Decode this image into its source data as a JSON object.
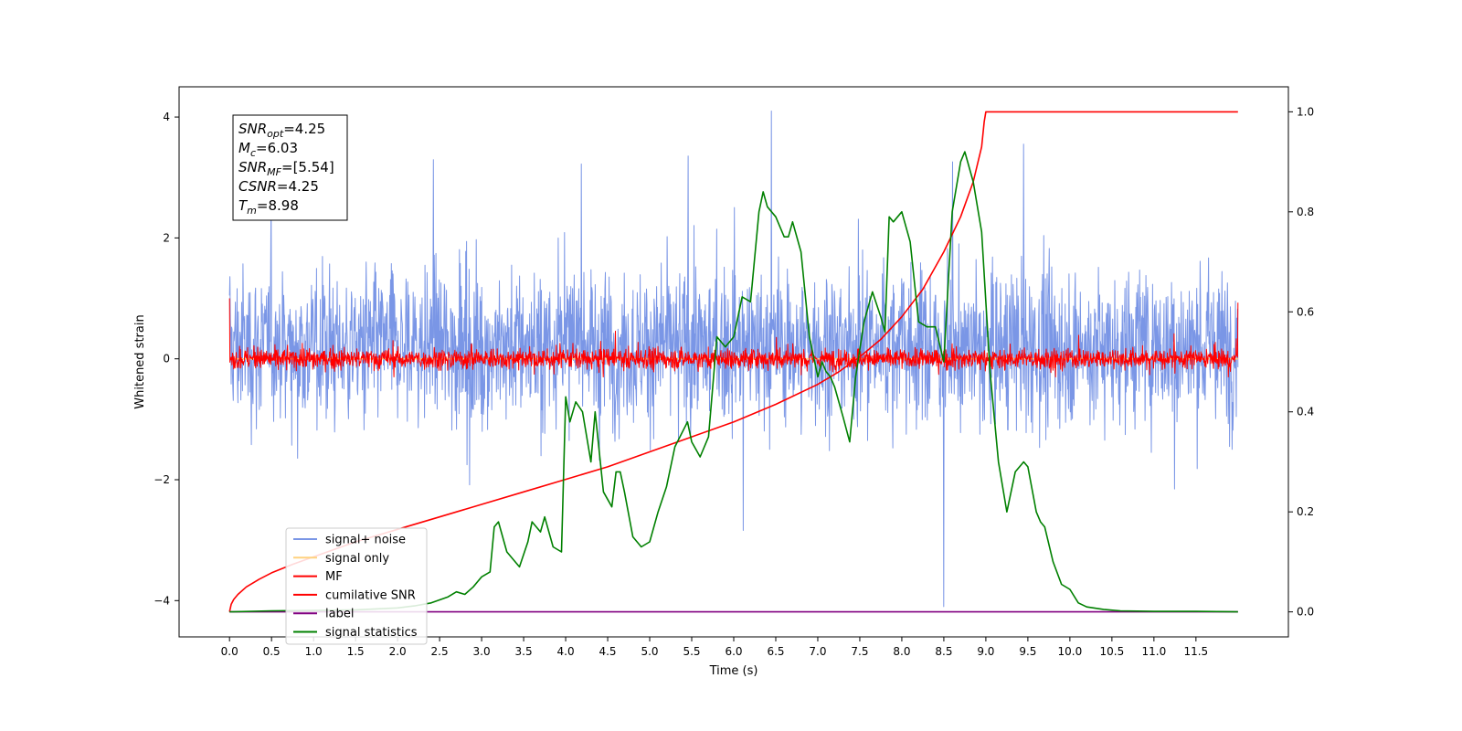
{
  "chart_data": {
    "type": "line",
    "xlabel": "Time (s)",
    "ylabel": "Whitened strain",
    "xlim": [
      -0.6,
      12.6
    ],
    "ylim": [
      -4.6,
      4.5
    ],
    "y2lim": [
      -0.05,
      1.05
    ],
    "xticks": [
      0.0,
      0.5,
      1.0,
      1.5,
      2.0,
      2.5,
      3.0,
      3.5,
      4.0,
      4.5,
      5.0,
      5.5,
      6.0,
      6.5,
      7.0,
      7.5,
      8.0,
      8.5,
      9.0,
      9.5,
      10.0,
      10.5,
      11.0,
      11.5
    ],
    "xtick_labels": [
      "0.0",
      "0.5",
      "1.0",
      "1.5",
      "2.0",
      "2.5",
      "3.0",
      "3.5",
      "4.0",
      "4.5",
      "5.0",
      "5.5",
      "6.0",
      "6.5",
      "7.0",
      "7.5",
      "8.0",
      "8.5",
      "9.0",
      "9.5",
      "10.0",
      "10.5",
      "11.0",
      "11.5"
    ],
    "yticks": [
      -4,
      -2,
      0,
      2,
      4
    ],
    "ytick_labels": [
      "−4",
      "−2",
      "0",
      "2",
      "4"
    ],
    "y2ticks": [
      0.0,
      0.2,
      0.4,
      0.6,
      0.8,
      1.0
    ],
    "y2tick_labels": [
      "0.0",
      "0.2",
      "0.4",
      "0.6",
      "0.8",
      "1.0"
    ],
    "grid": false,
    "legend_position": "lower-left",
    "annotation": {
      "lines": [
        {
          "base": "SNR",
          "sub": "opt",
          "value": "=4.25"
        },
        {
          "base": "M",
          "sub": "c",
          "value": "=6.03"
        },
        {
          "base": "SNR",
          "sub": "MF",
          "value": "=[5.54]"
        },
        {
          "base": "CSNR",
          "sub": "",
          "value": "=4.25"
        },
        {
          "base": "T",
          "sub": "m",
          "value": "=8.98"
        }
      ]
    },
    "series": [
      {
        "name": "signal+ noise",
        "color": "#7a96e6",
        "axis": "left",
        "kind": "noise",
        "x_range": [
          0.0,
          12.0
        ],
        "center": 0.2,
        "amplitude": 0.9,
        "envelope_high": 3.6,
        "envelope_low": -3.3,
        "peak_points": [
          {
            "x": 6.45,
            "y": 4.1
          },
          {
            "x": 8.5,
            "y": -4.1
          },
          {
            "x": 9.45,
            "y": 3.55
          }
        ]
      },
      {
        "name": "signal only",
        "color": "#ffd27f",
        "axis": "left",
        "kind": "line",
        "x": [
          0.0,
          12.0
        ],
        "y": [
          0.0,
          0.0
        ]
      },
      {
        "name": "MF",
        "color": "#ff0000",
        "axis": "left",
        "kind": "noise",
        "x_range": [
          0.0,
          12.0
        ],
        "center": 0.0,
        "amplitude": 0.12,
        "envelope_high": 0.7,
        "envelope_low": -0.3,
        "end_points": [
          {
            "x": 0.0,
            "y": 1.0
          },
          {
            "x": 12.0,
            "y": 0.93
          }
        ]
      },
      {
        "name": "cumilative SNR",
        "color": "#ff0000",
        "axis": "right",
        "x": [
          0.0,
          0.02,
          0.05,
          0.1,
          0.2,
          0.35,
          0.5,
          0.75,
          1.0,
          1.5,
          2.0,
          2.5,
          3.0,
          3.5,
          4.0,
          4.5,
          5.0,
          5.5,
          6.0,
          6.5,
          7.0,
          7.25,
          7.5,
          7.75,
          8.0,
          8.25,
          8.5,
          8.7,
          8.85,
          8.95,
          8.98,
          9.0,
          12.0
        ],
        "y": [
          0.0,
          0.015,
          0.025,
          0.035,
          0.05,
          0.065,
          0.078,
          0.095,
          0.11,
          0.14,
          0.165,
          0.19,
          0.215,
          0.24,
          0.265,
          0.29,
          0.32,
          0.35,
          0.38,
          0.415,
          0.455,
          0.48,
          0.51,
          0.545,
          0.59,
          0.645,
          0.72,
          0.79,
          0.86,
          0.93,
          0.98,
          1.0,
          1.0
        ]
      },
      {
        "name": "label",
        "color": "#800080",
        "axis": "right",
        "x": [
          0.0,
          12.0
        ],
        "y": [
          0.0,
          0.0
        ]
      },
      {
        "name": "signal statistics",
        "color": "#008000",
        "axis": "right",
        "x": [
          0.0,
          0.5,
          1.0,
          1.5,
          2.0,
          2.2,
          2.4,
          2.6,
          2.7,
          2.8,
          2.9,
          3.0,
          3.1,
          3.15,
          3.2,
          3.3,
          3.45,
          3.55,
          3.6,
          3.7,
          3.75,
          3.85,
          3.95,
          4.0,
          4.05,
          4.12,
          4.2,
          4.3,
          4.35,
          4.45,
          4.55,
          4.6,
          4.65,
          4.7,
          4.8,
          4.9,
          5.0,
          5.1,
          5.2,
          5.3,
          5.45,
          5.5,
          5.6,
          5.7,
          5.8,
          5.9,
          6.0,
          6.1,
          6.2,
          6.3,
          6.35,
          6.4,
          6.5,
          6.6,
          6.65,
          6.7,
          6.8,
          6.9,
          7.0,
          7.05,
          7.1,
          7.15,
          7.2,
          7.3,
          7.38,
          7.45,
          7.55,
          7.65,
          7.75,
          7.8,
          7.85,
          7.9,
          8.0,
          8.1,
          8.2,
          8.3,
          8.4,
          8.5,
          8.6,
          8.7,
          8.75,
          8.85,
          8.95,
          9.05,
          9.15,
          9.25,
          9.35,
          9.45,
          9.5,
          9.6,
          9.65,
          9.7,
          9.8,
          9.9,
          10.0,
          10.1,
          10.2,
          10.4,
          10.6,
          11.0,
          11.5,
          12.0
        ],
        "y": [
          0.0,
          0.002,
          0.003,
          0.004,
          0.008,
          0.012,
          0.018,
          0.03,
          0.04,
          0.035,
          0.05,
          0.07,
          0.08,
          0.17,
          0.18,
          0.12,
          0.09,
          0.14,
          0.18,
          0.16,
          0.19,
          0.13,
          0.12,
          0.43,
          0.38,
          0.42,
          0.4,
          0.3,
          0.4,
          0.24,
          0.21,
          0.28,
          0.28,
          0.24,
          0.15,
          0.13,
          0.14,
          0.2,
          0.25,
          0.33,
          0.38,
          0.34,
          0.31,
          0.35,
          0.55,
          0.53,
          0.55,
          0.63,
          0.62,
          0.8,
          0.84,
          0.81,
          0.79,
          0.75,
          0.75,
          0.78,
          0.72,
          0.55,
          0.47,
          0.5,
          0.48,
          0.47,
          0.45,
          0.39,
          0.34,
          0.47,
          0.58,
          0.64,
          0.59,
          0.56,
          0.79,
          0.78,
          0.8,
          0.74,
          0.58,
          0.57,
          0.57,
          0.5,
          0.8,
          0.9,
          0.92,
          0.86,
          0.76,
          0.48,
          0.3,
          0.2,
          0.28,
          0.3,
          0.29,
          0.2,
          0.18,
          0.17,
          0.1,
          0.055,
          0.045,
          0.018,
          0.01,
          0.005,
          0.002,
          0.001,
          0.001,
          0.0
        ]
      }
    ]
  }
}
